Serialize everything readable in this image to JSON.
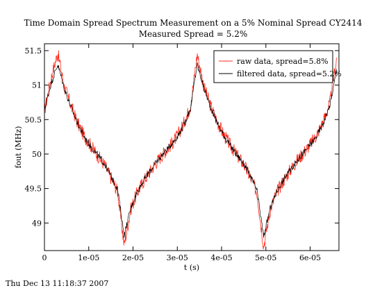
{
  "chart_data": {
    "type": "line",
    "title": "Time Domain Spread Spectrum Measurement on a 5% Nominal Spread CY2414",
    "subtitle": "Measured Spread = 5.2%",
    "xlabel": "t (s)",
    "ylabel": "fout (MHz)",
    "xlim": [
      0,
      6.65e-05
    ],
    "ylim": [
      48.6,
      51.6
    ],
    "x_ticks": [
      0,
      1e-05,
      2e-05,
      3e-05,
      4e-05,
      5e-05,
      6e-05
    ],
    "x_tick_labels": [
      "0",
      "1e-05",
      "2e-05",
      "3e-05",
      "4e-05",
      "5e-05",
      "6e-05"
    ],
    "y_ticks": [
      49,
      49.5,
      50,
      50.5,
      51,
      51.5
    ],
    "y_tick_labels": [
      "49",
      "49.5",
      "50",
      "50.5",
      "51",
      "51.5"
    ],
    "grid": false,
    "legend_position": "top-right",
    "series": [
      {
        "name": "raw data, spread=5.8%",
        "color": "#ff2a1a",
        "x": [
          0,
          1.5e-06,
          3e-06,
          4.5e-06,
          6e-06,
          7.5e-06,
          9e-06,
          1.05e-05,
          1.2e-05,
          1.35e-05,
          1.5e-05,
          1.65e-05,
          1.8e-05,
          1.95e-05,
          2.1e-05,
          2.25e-05,
          2.4e-05,
          2.55e-05,
          2.7e-05,
          2.85e-05,
          3e-05,
          3.15e-05,
          3.3e-05,
          3.45e-05,
          3.6e-05,
          3.75e-05,
          3.9e-05,
          4.05e-05,
          4.2e-05,
          4.35e-05,
          4.5e-05,
          4.65e-05,
          4.8e-05,
          4.95e-05,
          5.1e-05,
          5.25e-05,
          5.4e-05,
          5.55e-05,
          5.7e-05,
          5.85e-05,
          6e-05,
          6.15e-05,
          6.3e-05,
          6.45e-05,
          6.6e-05
        ],
        "y": [
          50.62,
          51.1,
          51.47,
          50.98,
          50.7,
          50.45,
          50.26,
          50.12,
          49.98,
          49.85,
          49.66,
          49.46,
          48.68,
          49.2,
          49.45,
          49.62,
          49.76,
          49.9,
          50.02,
          50.13,
          50.26,
          50.45,
          50.7,
          51.45,
          50.98,
          50.7,
          50.47,
          50.28,
          50.12,
          49.98,
          49.85,
          49.66,
          49.44,
          48.66,
          49.2,
          49.45,
          49.62,
          49.77,
          49.9,
          50.02,
          50.14,
          50.28,
          50.48,
          50.75,
          51.4
        ]
      },
      {
        "name": "filtered data, spread=5.2%",
        "color": "#000000",
        "x": [
          0,
          1.5e-06,
          3e-06,
          4.5e-06,
          6e-06,
          7.5e-06,
          9e-06,
          1.05e-05,
          1.2e-05,
          1.35e-05,
          1.5e-05,
          1.65e-05,
          1.8e-05,
          1.95e-05,
          2.1e-05,
          2.25e-05,
          2.4e-05,
          2.55e-05,
          2.7e-05,
          2.85e-05,
          3e-05,
          3.15e-05,
          3.3e-05,
          3.45e-05,
          3.6e-05,
          3.75e-05,
          3.9e-05,
          4.05e-05,
          4.2e-05,
          4.35e-05,
          4.5e-05,
          4.65e-05,
          4.8e-05,
          4.95e-05,
          5.1e-05,
          5.25e-05,
          5.4e-05,
          5.55e-05,
          5.7e-05,
          5.85e-05,
          6e-05,
          6.15e-05,
          6.3e-05,
          6.45e-05,
          6.6e-05
        ],
        "y": [
          50.65,
          51.02,
          51.3,
          50.95,
          50.68,
          50.44,
          50.25,
          50.11,
          49.98,
          49.86,
          49.68,
          49.5,
          48.82,
          49.22,
          49.46,
          49.63,
          49.77,
          49.9,
          50.02,
          50.13,
          50.25,
          50.42,
          50.67,
          51.3,
          50.96,
          50.68,
          50.46,
          50.27,
          50.12,
          49.98,
          49.86,
          49.68,
          49.47,
          48.8,
          49.22,
          49.46,
          49.63,
          49.77,
          49.9,
          50.02,
          50.13,
          50.26,
          50.45,
          50.72,
          51.22
        ]
      }
    ]
  },
  "footer": {
    "timestamp": "Thu Dec 13 11:18:37 2007"
  }
}
